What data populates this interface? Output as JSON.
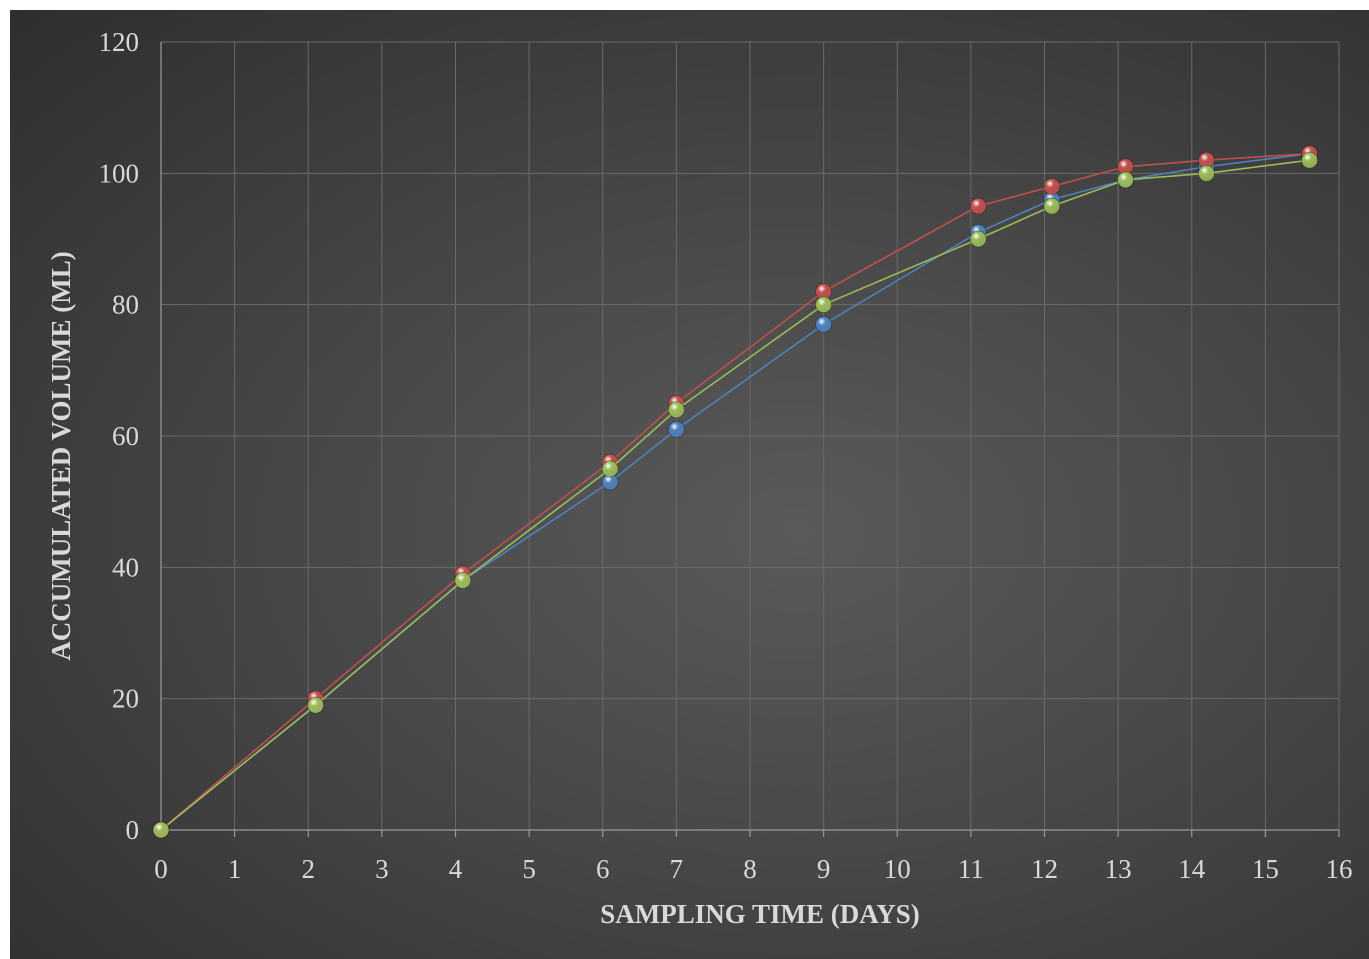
{
  "chart_data": {
    "type": "line",
    "xlabel": "SAMPLING TIME (DAYS)",
    "ylabel": "ACCUMULATED VOLUME (ML)",
    "xlim": [
      0,
      16
    ],
    "ylim": [
      0,
      120
    ],
    "xticks": [
      0,
      1,
      2,
      3,
      4,
      5,
      6,
      7,
      8,
      9,
      10,
      11,
      12,
      13,
      14,
      15,
      16
    ],
    "yticks": [
      0,
      20,
      40,
      60,
      80,
      100,
      120
    ],
    "grid": true,
    "legend": "none",
    "series": [
      {
        "color": "#4f81bd",
        "x": [
          0,
          2.1,
          4.1,
          6.1,
          7.0,
          9.0,
          11.1,
          12.1,
          13.1,
          14.2,
          15.6
        ],
        "y": [
          0,
          19,
          38,
          53,
          61,
          77,
          91,
          96,
          99,
          101,
          103
        ]
      },
      {
        "color": "#c0504d",
        "x": [
          0,
          2.1,
          4.1,
          6.1,
          7.0,
          9.0,
          11.1,
          12.1,
          13.1,
          14.2,
          15.6
        ],
        "y": [
          0,
          20,
          39,
          56,
          65,
          82,
          95,
          98,
          101,
          102,
          103
        ]
      },
      {
        "color": "#9bbb59",
        "x": [
          0,
          2.1,
          4.1,
          6.1,
          7.0,
          9.0,
          11.1,
          12.1,
          13.1,
          14.2,
          15.6
        ],
        "y": [
          0,
          19,
          38,
          55,
          64,
          80,
          90,
          95,
          99,
          100,
          102
        ]
      }
    ]
  }
}
